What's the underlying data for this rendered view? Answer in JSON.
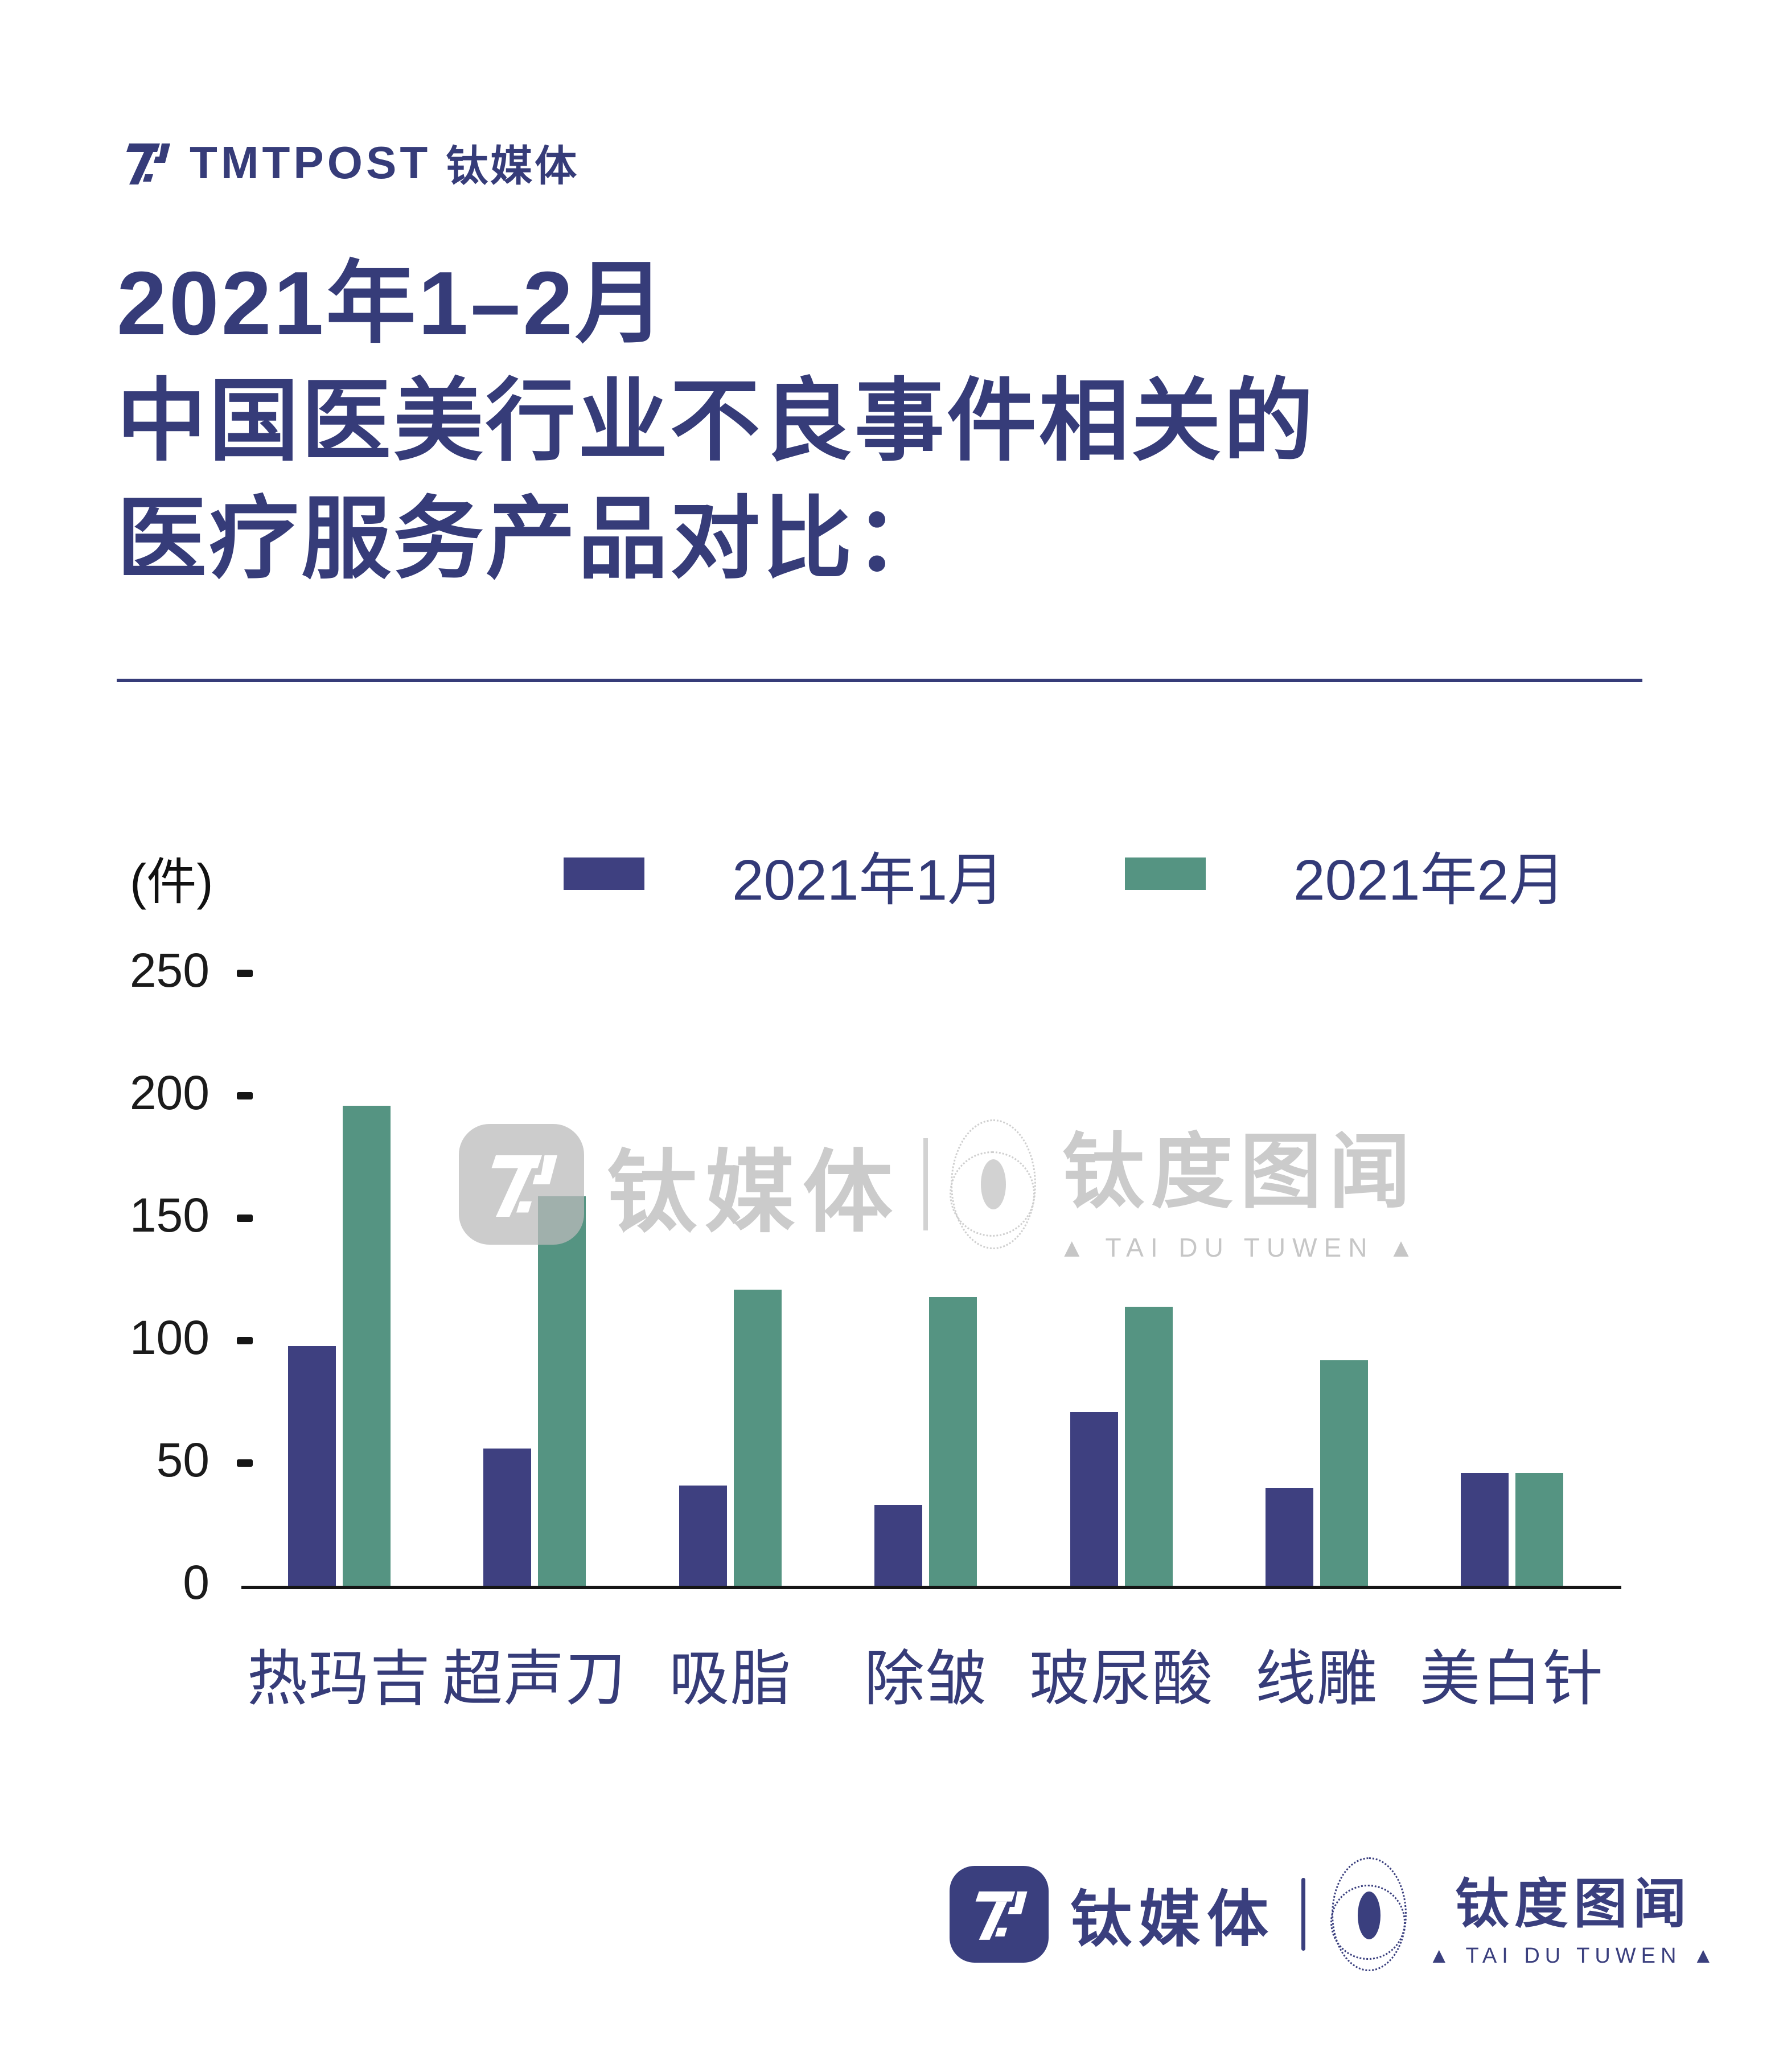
{
  "header": {
    "brand_en": "TMTPOST",
    "brand_cn": "钛媒体"
  },
  "title": {
    "lines": [
      "2021年1–2月",
      "中国医美行业不良事件相关的",
      "医疗服务产品对比："
    ]
  },
  "chart_data": {
    "type": "bar",
    "title": "2021年1-2月中国医美行业不良事件相关的医疗服务产品对比",
    "unit_label": "(件)",
    "categories": [
      "热玛吉",
      "超声刀",
      "吸脂",
      "除皱",
      "玻尿酸",
      "线雕",
      "美白针"
    ],
    "series": [
      {
        "name": "2021年1月",
        "color": "#3e4080",
        "values": [
          98,
          56,
          41,
          33,
          71,
          40,
          46
        ]
      },
      {
        "name": "2021年2月",
        "color": "#559482",
        "values": [
          196,
          159,
          121,
          118,
          114,
          92,
          46
        ]
      }
    ],
    "ylim": [
      0,
      250
    ],
    "yticks": [
      0,
      50,
      100,
      150,
      200,
      250
    ],
    "grid": false,
    "legend_position": "top"
  },
  "watermark": {
    "brand_cn": "钛媒体",
    "product_cn": "钛度图闻",
    "product_en": "▲ TAI DU TUWEN ▲"
  },
  "footer": {
    "brand_cn": "钛媒体",
    "product_cn": "钛度图闻",
    "product_en": "▲ TAI DU TUWEN ▲"
  },
  "colors": {
    "accent_navy": "#363c79",
    "bar_jan": "#3e4080",
    "bar_feb": "#559482",
    "axis_black": "#161616",
    "watermark_gray": "#cbcbcb"
  }
}
